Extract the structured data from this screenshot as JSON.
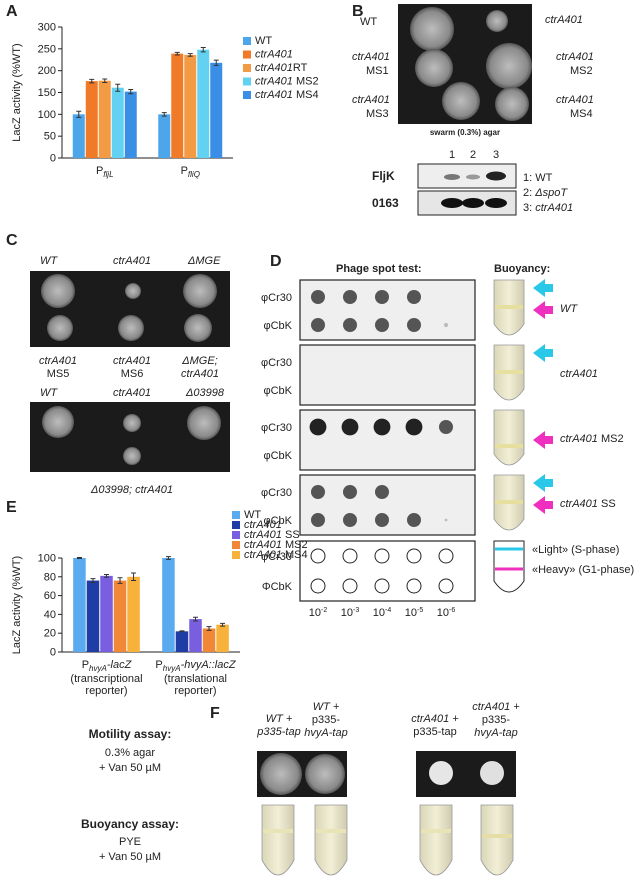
{
  "chart_data": [
    {
      "type": "bar",
      "ylabel": "LacZ activity (%WT)",
      "categories": [
        "PfljL",
        "PfliQ"
      ],
      "series": [
        {
          "name": "WT",
          "color": "#4ea6ea",
          "values": [
            100,
            100
          ],
          "errors": [
            7,
            4
          ]
        },
        {
          "name": "ctrA401",
          "color": "#f07a28",
          "values": [
            176,
            239
          ],
          "errors": [
            4,
            3
          ]
        },
        {
          "name": "ctrA401RT",
          "color": "#f39a45",
          "values": [
            177,
            236
          ],
          "errors": [
            4,
            3
          ]
        },
        {
          "name": "ctrA401 MS2",
          "color": "#63d2f2",
          "values": [
            161,
            248
          ],
          "errors": [
            8,
            5
          ]
        },
        {
          "name": "ctrA401 MS4",
          "color": "#3b8ee6",
          "values": [
            152,
            218
          ],
          "errors": [
            5,
            6
          ]
        }
      ],
      "ylim": [
        0,
        300
      ],
      "yticks": [
        0,
        50,
        100,
        150,
        200,
        250,
        300
      ],
      "legend": "right"
    },
    {
      "type": "bar",
      "ylabel": "LacZ activity (%WT)",
      "categories": [
        "PhvyA-lacZ",
        "PhvyA-hvyA::lacZ"
      ],
      "category_notes": [
        [
          "(transcriptional",
          "reporter)"
        ],
        [
          "(translational",
          "reporter)"
        ]
      ],
      "series": [
        {
          "name": "WT",
          "color": "#5aaaf0",
          "values": [
            100,
            100
          ],
          "errors": [
            0.5,
            1.5
          ]
        },
        {
          "name": "ctrA401",
          "color": "#1e3ea6",
          "values": [
            76,
            22
          ],
          "errors": [
            2,
            0.5
          ]
        },
        {
          "name": "ctrA401 SS",
          "color": "#7a5ee0",
          "values": [
            81,
            35
          ],
          "errors": [
            1.5,
            2
          ]
        },
        {
          "name": "ctrA401 MS2",
          "color": "#f08838",
          "values": [
            76,
            25
          ],
          "errors": [
            3,
            2
          ]
        },
        {
          "name": "ctrA401 MS4",
          "color": "#f8b13a",
          "values": [
            80,
            29
          ],
          "errors": [
            4,
            1.5
          ]
        }
      ],
      "ylim": [
        0,
        100
      ],
      "yticks": [
        0,
        20,
        40,
        60,
        80,
        100
      ],
      "legend": "upper right"
    }
  ],
  "panel_letters": [
    "A",
    "B",
    "C",
    "D",
    "E",
    "F"
  ],
  "panel_b": {
    "strains": [
      "WT",
      "ctrA401"
    ],
    "ms": [
      [
        "ctrA401",
        "MS1"
      ],
      [
        "ctrA401",
        "MS2"
      ],
      [
        "ctrA401",
        "MS3"
      ],
      [
        "ctrA401",
        "MS4"
      ]
    ],
    "caption": "swarm (0.3%) agar",
    "lanes": [
      "1",
      "2",
      "3"
    ],
    "blots": [
      "FljK",
      "0163"
    ],
    "lane_key": [
      "1: WT",
      "2: ΔspoT",
      "3: ctrA401"
    ]
  },
  "panel_c": {
    "top": [
      "WT",
      "ctrA401",
      "ΔMGE"
    ],
    "bottom": [
      [
        "ctrA401",
        "MS5"
      ],
      [
        "ctrA401",
        "MS6"
      ],
      [
        "ΔMGE;",
        "ctrA401"
      ]
    ],
    "top2": [
      "WT",
      "ctrA401",
      "Δ03998"
    ],
    "bottom2": "Δ03998; ctrA401"
  },
  "panel_d": {
    "headers": [
      "Phage spot test:",
      "Buoyancy:"
    ],
    "phages": [
      "φCr30",
      "φCbK"
    ],
    "strains": [
      "WT",
      "ctrA401",
      "ctrA401 MS2",
      "ctrA401 SS"
    ],
    "key_phages": [
      "φCr30",
      "ΦCbK"
    ],
    "dilutions": [
      "10-2",
      "10-3",
      "10-4",
      "10-5",
      "10-6"
    ],
    "key": [
      "«Light» (S-phase)",
      "«Heavy» (G1-phase)"
    ]
  },
  "panel_f": {
    "motility": [
      "Motility assay:",
      "0.3% agar",
      "+ Van 50 µM"
    ],
    "buoyancy": [
      "Buoyancy assay:",
      "PYE",
      "+ Van 50 µM"
    ],
    "columns": [
      [
        "WT +",
        "p335-tap"
      ],
      [
        "WT +",
        "p335-",
        "hvyA-tap"
      ],
      [
        "ctrA401 +",
        "p335-tap"
      ],
      [
        "ctrA401 +",
        "p335-",
        "hvyA-tap"
      ]
    ]
  }
}
